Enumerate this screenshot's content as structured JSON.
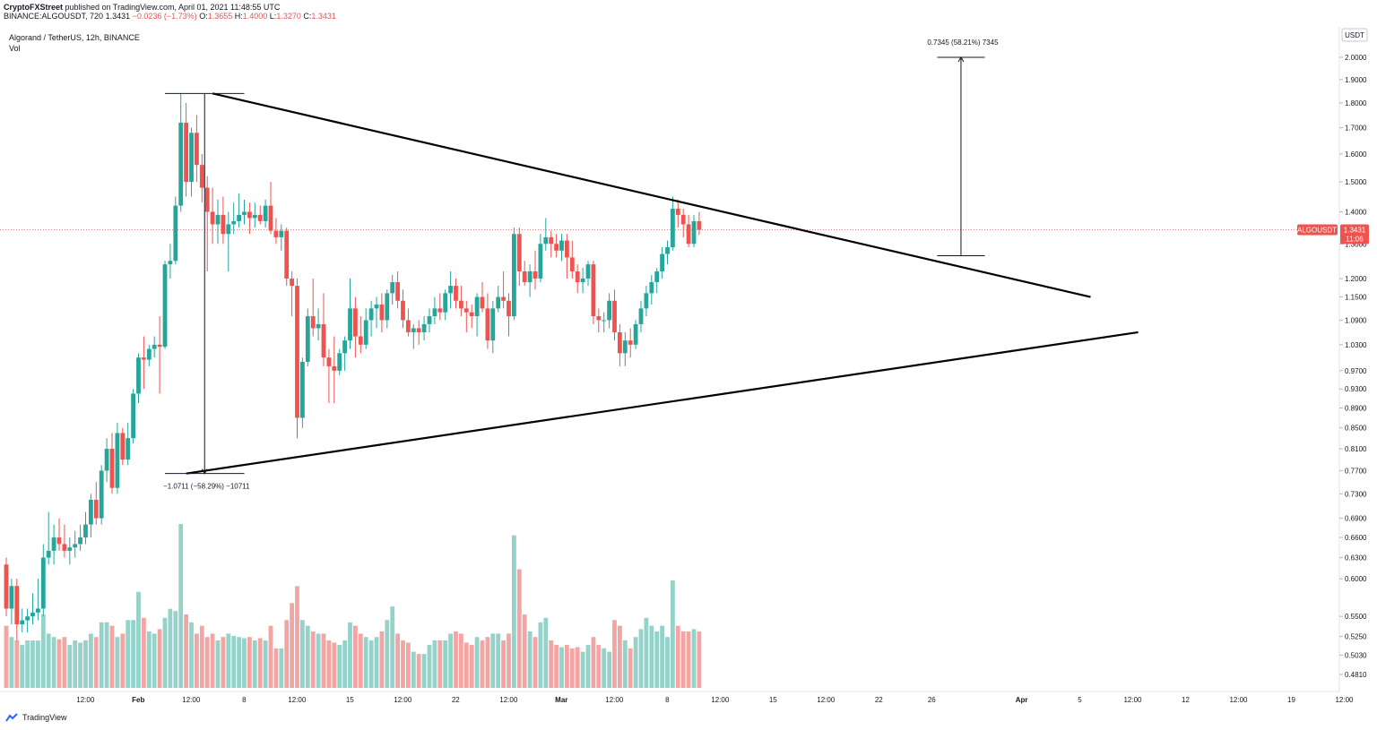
{
  "header": {
    "publisher": "CryptoFXStreet",
    "published_text": "published on TradingView.com, April 01, 2021 11:48:55 UTC",
    "symbol_line": "BINANCE:ALGOUSDT, 720",
    "price": "1.3431",
    "change": "−0.0236 (−1.73%)",
    "open_label": "O:",
    "open": "1.3655",
    "high_label": "H:",
    "high": "1.4000",
    "low_label": "L:",
    "low": "1.3270",
    "close_label": "C:",
    "close": "1.3431"
  },
  "legend": {
    "title": "Algorand / TetherUS, 12h, BINANCE",
    "vol": "Vol"
  },
  "footer": {
    "brand": "TradingView"
  },
  "colors": {
    "up": "#26a69a",
    "down": "#ef5350",
    "vol_up": "#95d2ca",
    "vol_down": "#f3a5a4",
    "trendline": "#000000",
    "price_label_bg": "#ef5350",
    "axis_text": "#131722"
  },
  "chart_data": {
    "type": "candlestick",
    "interval": "12h",
    "price_axis": {
      "unit": "USDT",
      "scale": "log",
      "ticks": [
        "2.0000",
        "1.9000",
        "1.8000",
        "1.7000",
        "1.6000",
        "1.5000",
        "1.4000",
        "1.3000",
        "1.2000",
        "1.1500",
        "1.0900",
        "1.0300",
        "0.9700",
        "0.9300",
        "0.8900",
        "0.8500",
        "0.8100",
        "0.7700",
        "0.7300",
        "0.6900",
        "0.6600",
        "0.6300",
        "0.6000",
        "0.5500",
        "0.5250",
        "0.5030",
        "0.4810"
      ]
    },
    "time_axis": {
      "ticks": [
        {
          "label": "12:00",
          "i": 7
        },
        {
          "label": "Feb",
          "i": 17
        },
        {
          "label": "12:00",
          "i": 27
        },
        {
          "label": "8",
          "i": 37
        },
        {
          "label": "12:00",
          "i": 47
        },
        {
          "label": "15",
          "i": 57
        },
        {
          "label": "12:00",
          "i": 67
        },
        {
          "label": "22",
          "i": 77
        },
        {
          "label": "12:00",
          "i": 87
        },
        {
          "label": "Mar",
          "i": 97
        },
        {
          "label": "12:00",
          "i": 107
        },
        {
          "label": "8",
          "i": 117
        },
        {
          "label": "12:00",
          "i": 127
        },
        {
          "label": "15",
          "i": 137
        },
        {
          "label": "12:00",
          "i": 147
        },
        {
          "label": "22",
          "i": 157
        },
        {
          "label": "26",
          "i": 167
        },
        {
          "label": "Apr",
          "i": 184
        },
        {
          "label": "5",
          "i": 195
        },
        {
          "label": "12:00",
          "i": 205
        },
        {
          "label": "12",
          "i": 215
        },
        {
          "label": "12:00",
          "i": 225
        },
        {
          "label": "19",
          "i": 235
        },
        {
          "label": "12:00",
          "i": 245
        }
      ]
    },
    "last_price": {
      "symbol": "ALGOUSDT",
      "value": "1.3431",
      "countdown": "11:06"
    },
    "candles": [
      {
        "o": 0.62,
        "h": 0.63,
        "l": 0.55,
        "c": 0.56,
        "v": 0.55
      },
      {
        "o": 0.56,
        "h": 0.6,
        "l": 0.54,
        "c": 0.59,
        "v": 0.45
      },
      {
        "o": 0.59,
        "h": 0.6,
        "l": 0.52,
        "c": 0.54,
        "v": 0.42
      },
      {
        "o": 0.54,
        "h": 0.56,
        "l": 0.53,
        "c": 0.545,
        "v": 0.38
      },
      {
        "o": 0.545,
        "h": 0.56,
        "l": 0.53,
        "c": 0.55,
        "v": 0.42
      },
      {
        "o": 0.55,
        "h": 0.58,
        "l": 0.54,
        "c": 0.555,
        "v": 0.42
      },
      {
        "o": 0.555,
        "h": 0.6,
        "l": 0.545,
        "c": 0.56,
        "v": 0.42
      },
      {
        "o": 0.56,
        "h": 0.65,
        "l": 0.55,
        "c": 0.63,
        "v": 0.65
      },
      {
        "o": 0.63,
        "h": 0.7,
        "l": 0.62,
        "c": 0.64,
        "v": 0.48
      },
      {
        "o": 0.64,
        "h": 0.68,
        "l": 0.62,
        "c": 0.66,
        "v": 0.45
      },
      {
        "o": 0.66,
        "h": 0.69,
        "l": 0.64,
        "c": 0.65,
        "v": 0.43
      },
      {
        "o": 0.65,
        "h": 0.68,
        "l": 0.63,
        "c": 0.64,
        "v": 0.45
      },
      {
        "o": 0.64,
        "h": 0.66,
        "l": 0.62,
        "c": 0.645,
        "v": 0.38
      },
      {
        "o": 0.645,
        "h": 0.67,
        "l": 0.63,
        "c": 0.65,
        "v": 0.42
      },
      {
        "o": 0.65,
        "h": 0.68,
        "l": 0.64,
        "c": 0.66,
        "v": 0.4
      },
      {
        "o": 0.66,
        "h": 0.7,
        "l": 0.65,
        "c": 0.68,
        "v": 0.42
      },
      {
        "o": 0.68,
        "h": 0.73,
        "l": 0.66,
        "c": 0.72,
        "v": 0.48
      },
      {
        "o": 0.72,
        "h": 0.75,
        "l": 0.68,
        "c": 0.69,
        "v": 0.45
      },
      {
        "o": 0.69,
        "h": 0.78,
        "l": 0.68,
        "c": 0.77,
        "v": 0.58
      },
      {
        "o": 0.77,
        "h": 0.83,
        "l": 0.75,
        "c": 0.81,
        "v": 0.58
      },
      {
        "o": 0.81,
        "h": 0.84,
        "l": 0.73,
        "c": 0.74,
        "v": 0.55
      },
      {
        "o": 0.74,
        "h": 0.86,
        "l": 0.73,
        "c": 0.84,
        "v": 0.45
      },
      {
        "o": 0.84,
        "h": 0.85,
        "l": 0.78,
        "c": 0.79,
        "v": 0.48
      },
      {
        "o": 0.79,
        "h": 0.86,
        "l": 0.78,
        "c": 0.83,
        "v": 0.6
      },
      {
        "o": 0.83,
        "h": 0.93,
        "l": 0.82,
        "c": 0.92,
        "v": 0.6
      },
      {
        "o": 0.92,
        "h": 1.01,
        "l": 0.9,
        "c": 1.0,
        "v": 0.85
      },
      {
        "o": 1.0,
        "h": 1.05,
        "l": 0.93,
        "c": 0.995,
        "v": 0.62
      },
      {
        "o": 0.995,
        "h": 1.03,
        "l": 0.98,
        "c": 1.02,
        "v": 0.5
      },
      {
        "o": 1.02,
        "h": 1.05,
        "l": 1.0,
        "c": 1.03,
        "v": 0.48
      },
      {
        "o": 1.03,
        "h": 1.1,
        "l": 0.92,
        "c": 1.025,
        "v": 0.52
      },
      {
        "o": 1.025,
        "h": 1.25,
        "l": 1.02,
        "c": 1.24,
        "v": 0.62
      },
      {
        "o": 1.24,
        "h": 1.3,
        "l": 1.2,
        "c": 1.25,
        "v": 0.7
      },
      {
        "o": 1.25,
        "h": 1.45,
        "l": 1.24,
        "c": 1.42,
        "v": 0.68
      },
      {
        "o": 1.42,
        "h": 1.84,
        "l": 1.4,
        "c": 1.72,
        "v": 1.45
      },
      {
        "o": 1.72,
        "h": 1.8,
        "l": 1.45,
        "c": 1.5,
        "v": 0.65
      },
      {
        "o": 1.5,
        "h": 1.7,
        "l": 1.45,
        "c": 1.68,
        "v": 0.58
      },
      {
        "o": 1.68,
        "h": 1.75,
        "l": 1.5,
        "c": 1.56,
        "v": 0.48
      },
      {
        "o": 1.56,
        "h": 1.6,
        "l": 1.43,
        "c": 1.48,
        "v": 0.55
      },
      {
        "o": 1.48,
        "h": 1.52,
        "l": 1.22,
        "c": 1.4,
        "v": 0.45
      },
      {
        "o": 1.4,
        "h": 1.48,
        "l": 1.3,
        "c": 1.36,
        "v": 0.48
      },
      {
        "o": 1.36,
        "h": 1.44,
        "l": 1.3,
        "c": 1.39,
        "v": 0.42
      },
      {
        "o": 1.39,
        "h": 1.45,
        "l": 1.3,
        "c": 1.33,
        "v": 0.45
      },
      {
        "o": 1.33,
        "h": 1.4,
        "l": 1.22,
        "c": 1.36,
        "v": 0.48
      },
      {
        "o": 1.36,
        "h": 1.43,
        "l": 1.33,
        "c": 1.37,
        "v": 0.46
      },
      {
        "o": 1.37,
        "h": 1.46,
        "l": 1.35,
        "c": 1.39,
        "v": 0.45
      },
      {
        "o": 1.39,
        "h": 1.44,
        "l": 1.36,
        "c": 1.4,
        "v": 0.44
      },
      {
        "o": 1.4,
        "h": 1.43,
        "l": 1.33,
        "c": 1.38,
        "v": 0.45
      },
      {
        "o": 1.38,
        "h": 1.43,
        "l": 1.35,
        "c": 1.39,
        "v": 0.42
      },
      {
        "o": 1.39,
        "h": 1.42,
        "l": 1.36,
        "c": 1.37,
        "v": 0.44
      },
      {
        "o": 1.37,
        "h": 1.44,
        "l": 1.35,
        "c": 1.42,
        "v": 0.42
      },
      {
        "o": 1.42,
        "h": 1.5,
        "l": 1.33,
        "c": 1.34,
        "v": 0.55
      },
      {
        "o": 1.34,
        "h": 1.38,
        "l": 1.3,
        "c": 1.32,
        "v": 0.35
      },
      {
        "o": 1.32,
        "h": 1.36,
        "l": 1.28,
        "c": 1.34,
        "v": 0.35
      },
      {
        "o": 1.34,
        "h": 1.35,
        "l": 1.18,
        "c": 1.2,
        "v": 0.6
      },
      {
        "o": 1.2,
        "h": 1.22,
        "l": 1.1,
        "c": 1.18,
        "v": 0.75
      },
      {
        "o": 1.18,
        "h": 1.2,
        "l": 0.83,
        "c": 0.87,
        "v": 0.9
      },
      {
        "o": 0.87,
        "h": 1.0,
        "l": 0.85,
        "c": 0.99,
        "v": 0.6
      },
      {
        "o": 0.99,
        "h": 1.12,
        "l": 0.98,
        "c": 1.1,
        "v": 0.55
      },
      {
        "o": 1.1,
        "h": 1.2,
        "l": 1.05,
        "c": 1.07,
        "v": 0.5
      },
      {
        "o": 1.07,
        "h": 1.12,
        "l": 1.04,
        "c": 1.08,
        "v": 0.48
      },
      {
        "o": 1.08,
        "h": 1.16,
        "l": 0.98,
        "c": 1.0,
        "v": 0.48
      },
      {
        "o": 1.0,
        "h": 1.02,
        "l": 0.9,
        "c": 0.98,
        "v": 0.42
      },
      {
        "o": 0.98,
        "h": 1.05,
        "l": 0.9,
        "c": 0.97,
        "v": 0.4
      },
      {
        "o": 0.97,
        "h": 1.02,
        "l": 0.96,
        "c": 1.01,
        "v": 0.38
      },
      {
        "o": 1.01,
        "h": 1.05,
        "l": 0.97,
        "c": 1.04,
        "v": 0.42
      },
      {
        "o": 1.04,
        "h": 1.2,
        "l": 1.02,
        "c": 1.12,
        "v": 0.58
      },
      {
        "o": 1.12,
        "h": 1.15,
        "l": 1.0,
        "c": 1.05,
        "v": 0.55
      },
      {
        "o": 1.05,
        "h": 1.1,
        "l": 1.01,
        "c": 1.03,
        "v": 0.48
      },
      {
        "o": 1.03,
        "h": 1.12,
        "l": 1.02,
        "c": 1.09,
        "v": 0.45
      },
      {
        "o": 1.09,
        "h": 1.14,
        "l": 1.05,
        "c": 1.12,
        "v": 0.42
      },
      {
        "o": 1.12,
        "h": 1.15,
        "l": 1.07,
        "c": 1.13,
        "v": 0.45
      },
      {
        "o": 1.13,
        "h": 1.16,
        "l": 1.06,
        "c": 1.09,
        "v": 0.5
      },
      {
        "o": 1.09,
        "h": 1.17,
        "l": 1.07,
        "c": 1.16,
        "v": 0.6
      },
      {
        "o": 1.16,
        "h": 1.21,
        "l": 1.13,
        "c": 1.19,
        "v": 0.72
      },
      {
        "o": 1.19,
        "h": 1.22,
        "l": 1.12,
        "c": 1.14,
        "v": 0.48
      },
      {
        "o": 1.14,
        "h": 1.17,
        "l": 1.07,
        "c": 1.09,
        "v": 0.42
      },
      {
        "o": 1.09,
        "h": 1.12,
        "l": 1.05,
        "c": 1.06,
        "v": 0.4
      },
      {
        "o": 1.06,
        "h": 1.08,
        "l": 1.02,
        "c": 1.07,
        "v": 0.32
      },
      {
        "o": 1.07,
        "h": 1.09,
        "l": 1.03,
        "c": 1.06,
        "v": 0.3
      },
      {
        "o": 1.06,
        "h": 1.1,
        "l": 1.04,
        "c": 1.08,
        "v": 0.3
      },
      {
        "o": 1.08,
        "h": 1.12,
        "l": 1.06,
        "c": 1.1,
        "v": 0.38
      },
      {
        "o": 1.1,
        "h": 1.15,
        "l": 1.08,
        "c": 1.12,
        "v": 0.42
      },
      {
        "o": 1.12,
        "h": 1.16,
        "l": 1.09,
        "c": 1.11,
        "v": 0.42
      },
      {
        "o": 1.11,
        "h": 1.17,
        "l": 1.09,
        "c": 1.16,
        "v": 0.42
      },
      {
        "o": 1.16,
        "h": 1.22,
        "l": 1.12,
        "c": 1.18,
        "v": 0.48
      },
      {
        "o": 1.18,
        "h": 1.2,
        "l": 1.12,
        "c": 1.14,
        "v": 0.5
      },
      {
        "o": 1.14,
        "h": 1.18,
        "l": 1.1,
        "c": 1.12,
        "v": 0.48
      },
      {
        "o": 1.12,
        "h": 1.14,
        "l": 1.06,
        "c": 1.11,
        "v": 0.4
      },
      {
        "o": 1.11,
        "h": 1.13,
        "l": 1.07,
        "c": 1.1,
        "v": 0.38
      },
      {
        "o": 1.1,
        "h": 1.16,
        "l": 1.05,
        "c": 1.15,
        "v": 0.45
      },
      {
        "o": 1.15,
        "h": 1.19,
        "l": 1.11,
        "c": 1.12,
        "v": 0.42
      },
      {
        "o": 1.12,
        "h": 1.16,
        "l": 1.02,
        "c": 1.04,
        "v": 0.45
      },
      {
        "o": 1.04,
        "h": 1.14,
        "l": 1.01,
        "c": 1.12,
        "v": 0.48
      },
      {
        "o": 1.12,
        "h": 1.18,
        "l": 1.11,
        "c": 1.15,
        "v": 0.48
      },
      {
        "o": 1.15,
        "h": 1.22,
        "l": 1.12,
        "c": 1.14,
        "v": 0.42
      },
      {
        "o": 1.14,
        "h": 1.16,
        "l": 1.05,
        "c": 1.1,
        "v": 0.48
      },
      {
        "o": 1.1,
        "h": 1.35,
        "l": 1.09,
        "c": 1.33,
        "v": 1.35
      },
      {
        "o": 1.33,
        "h": 1.35,
        "l": 1.18,
        "c": 1.22,
        "v": 1.05
      },
      {
        "o": 1.22,
        "h": 1.25,
        "l": 1.18,
        "c": 1.19,
        "v": 0.65
      },
      {
        "o": 1.19,
        "h": 1.24,
        "l": 1.15,
        "c": 1.22,
        "v": 0.5
      },
      {
        "o": 1.22,
        "h": 1.28,
        "l": 1.17,
        "c": 1.2,
        "v": 0.45
      },
      {
        "o": 1.2,
        "h": 1.33,
        "l": 1.19,
        "c": 1.3,
        "v": 0.58
      },
      {
        "o": 1.3,
        "h": 1.38,
        "l": 1.28,
        "c": 1.32,
        "v": 0.62
      },
      {
        "o": 1.32,
        "h": 1.34,
        "l": 1.26,
        "c": 1.3,
        "v": 0.42
      },
      {
        "o": 1.3,
        "h": 1.33,
        "l": 1.26,
        "c": 1.28,
        "v": 0.38
      },
      {
        "o": 1.28,
        "h": 1.33,
        "l": 1.25,
        "c": 1.31,
        "v": 0.36
      },
      {
        "o": 1.31,
        "h": 1.33,
        "l": 1.2,
        "c": 1.26,
        "v": 0.38
      },
      {
        "o": 1.26,
        "h": 1.31,
        "l": 1.2,
        "c": 1.22,
        "v": 0.35
      },
      {
        "o": 1.22,
        "h": 1.24,
        "l": 1.16,
        "c": 1.19,
        "v": 0.36
      },
      {
        "o": 1.19,
        "h": 1.23,
        "l": 1.16,
        "c": 1.2,
        "v": 0.32
      },
      {
        "o": 1.2,
        "h": 1.25,
        "l": 1.18,
        "c": 1.24,
        "v": 0.38
      },
      {
        "o": 1.24,
        "h": 1.25,
        "l": 1.08,
        "c": 1.1,
        "v": 0.45
      },
      {
        "o": 1.1,
        "h": 1.12,
        "l": 1.06,
        "c": 1.09,
        "v": 0.38
      },
      {
        "o": 1.09,
        "h": 1.11,
        "l": 1.06,
        "c": 1.09,
        "v": 0.35
      },
      {
        "o": 1.09,
        "h": 1.16,
        "l": 1.07,
        "c": 1.14,
        "v": 0.32
      },
      {
        "o": 1.14,
        "h": 1.17,
        "l": 1.04,
        "c": 1.06,
        "v": 0.6
      },
      {
        "o": 1.06,
        "h": 1.08,
        "l": 0.98,
        "c": 1.01,
        "v": 0.55
      },
      {
        "o": 1.01,
        "h": 1.06,
        "l": 0.98,
        "c": 1.04,
        "v": 0.42
      },
      {
        "o": 1.04,
        "h": 1.07,
        "l": 1.0,
        "c": 1.03,
        "v": 0.35
      },
      {
        "o": 1.03,
        "h": 1.09,
        "l": 1.02,
        "c": 1.08,
        "v": 0.45
      },
      {
        "o": 1.08,
        "h": 1.14,
        "l": 1.06,
        "c": 1.12,
        "v": 0.52
      },
      {
        "o": 1.12,
        "h": 1.18,
        "l": 1.1,
        "c": 1.16,
        "v": 0.62
      },
      {
        "o": 1.16,
        "h": 1.21,
        "l": 1.13,
        "c": 1.19,
        "v": 0.55
      },
      {
        "o": 1.19,
        "h": 1.23,
        "l": 1.16,
        "c": 1.22,
        "v": 0.5
      },
      {
        "o": 1.22,
        "h": 1.29,
        "l": 1.2,
        "c": 1.27,
        "v": 0.55
      },
      {
        "o": 1.27,
        "h": 1.31,
        "l": 1.24,
        "c": 1.29,
        "v": 0.45
      },
      {
        "o": 1.29,
        "h": 1.45,
        "l": 1.28,
        "c": 1.41,
        "v": 0.95
      },
      {
        "o": 1.41,
        "h": 1.44,
        "l": 1.35,
        "c": 1.39,
        "v": 0.55
      },
      {
        "o": 1.39,
        "h": 1.41,
        "l": 1.32,
        "c": 1.36,
        "v": 0.5
      },
      {
        "o": 1.36,
        "h": 1.39,
        "l": 1.29,
        "c": 1.3,
        "v": 0.5
      },
      {
        "o": 1.3,
        "h": 1.39,
        "l": 1.29,
        "c": 1.37,
        "v": 0.52
      },
      {
        "o": 1.37,
        "h": 1.4,
        "l": 1.327,
        "c": 1.3431,
        "v": 0.5
      }
    ],
    "annotations": [
      {
        "type": "trendline",
        "name": "upper-trendline",
        "from": {
          "i": 39,
          "price": 1.84
        },
        "to": {
          "i": 205,
          "price": 1.15
        }
      },
      {
        "type": "trendline",
        "name": "lower-trendline",
        "from": {
          "i": 34,
          "price": 0.765
        },
        "to": {
          "i": 214,
          "price": 1.06
        }
      },
      {
        "type": "measure",
        "name": "pole-measure",
        "text": "−1.0711 (−58.29%) −10711",
        "i_from": 30,
        "i_to": 45,
        "price_top": 1.84,
        "price_bottom": 0.765
      },
      {
        "type": "measure",
        "name": "target-measure",
        "text": "0.7345 (58.21%) 7345",
        "i_from": 176,
        "i_to": 185,
        "price_top": 2.0,
        "price_bottom": 1.265
      }
    ]
  }
}
